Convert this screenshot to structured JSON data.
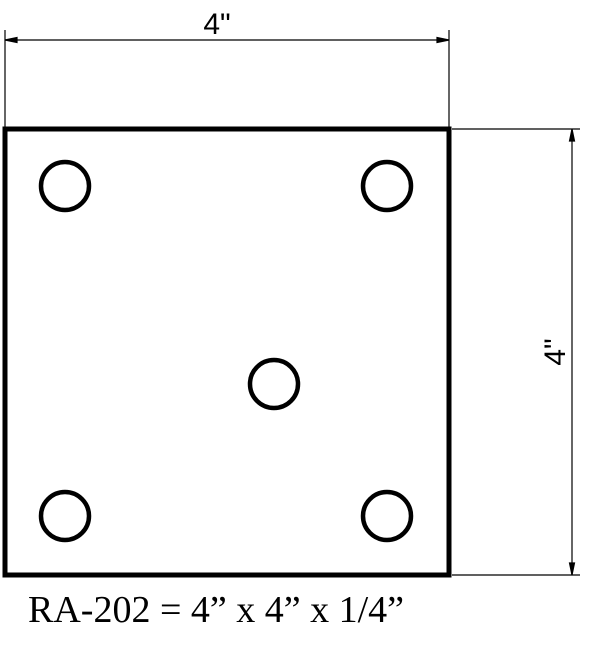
{
  "dimensions": {
    "width_label": "4\"",
    "height_label": "4\""
  },
  "plate": {
    "hole_count": 5
  },
  "caption": "RA-202 = 4” x 4” x 1/4”"
}
